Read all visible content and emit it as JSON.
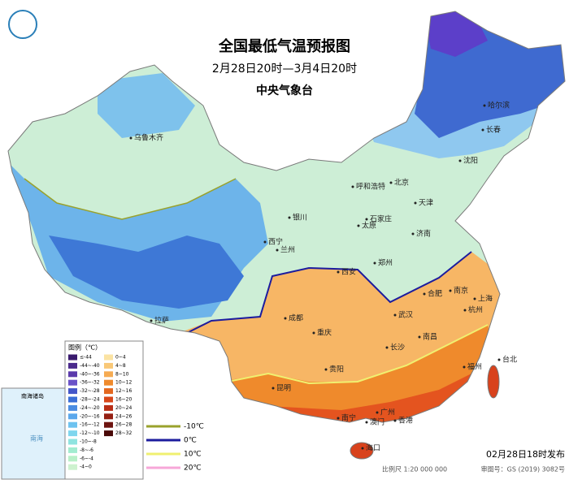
{
  "header": {
    "title": "全国最低气温预报图",
    "subtitle": "2月28日20时—3月4日20时",
    "issuer": "中央气象台"
  },
  "cities": [
    "哈尔滨",
    "长春",
    "沈阳",
    "北京",
    "天津",
    "呼和浩特",
    "石家庄",
    "太原",
    "济南",
    "银川",
    "西宁",
    "兰州",
    "郑州",
    "西安",
    "合肥",
    "南京",
    "上海",
    "杭州",
    "武汉",
    "成都",
    "重庆",
    "拉萨",
    "长沙",
    "南昌",
    "福州",
    "台北",
    "贵阳",
    "昆明",
    "南宁",
    "广州",
    "澳门",
    "香港",
    "海口",
    "乌鲁木齐"
  ],
  "legend": {
    "title": "图例（℃）",
    "cold": [
      "≤-44",
      "-44~-40",
      "-40~-36",
      "-36~-32",
      "-32~-28",
      "-28~-24",
      "-24~-20",
      "-20~-16",
      "-16~-12",
      "-12~-10",
      "-10~-8",
      "-8~-6",
      "-6~-4",
      "-4~0"
    ],
    "warm": [
      "0~4",
      "4~8",
      "8~10",
      "10~12",
      "12~16",
      "16~20",
      "20~24",
      "24~26",
      "26~28",
      "28~32"
    ],
    "lines": [
      "-10℃",
      "0℃",
      "10℃",
      "20℃"
    ]
  },
  "inset": {
    "title": "南海诸岛",
    "sea": "南海"
  },
  "footer": {
    "issued": "02月28日18时发布",
    "scale": "比例尺 1:20 000 000",
    "approval": "审图号：GS (2019) 3082号"
  }
}
